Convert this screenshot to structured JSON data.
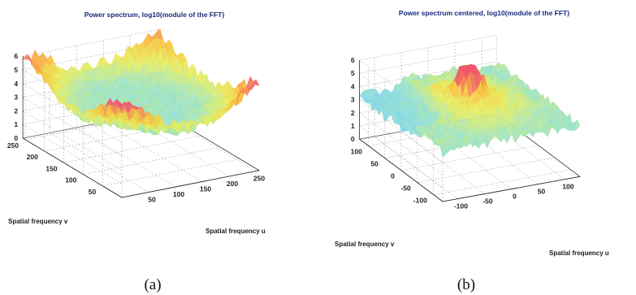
{
  "chart_data": [
    {
      "type": "surface",
      "panel_label": "(a)",
      "title": "Power spectrum, log10(module of the FFT)",
      "xlabel": "Spatial frequency u",
      "ylabel": "Spatial frequency v",
      "zlabel": "",
      "x_ticks": [
        "50",
        "100",
        "150",
        "200",
        "250"
      ],
      "y_ticks": [
        "50",
        "100",
        "150",
        "200",
        "250"
      ],
      "z_ticks": [
        "0",
        "1",
        "2",
        "3",
        "4",
        "5",
        "6"
      ],
      "xlim": [
        0,
        256
      ],
      "ylim": [
        0,
        256
      ],
      "zlim": [
        0,
        6
      ],
      "grid": true,
      "colormap": [
        "#7fd4f0",
        "#9be3c8",
        "#e6ee60",
        "#f8c23a",
        "#f0566e"
      ],
      "peaks": [
        {
          "u": 128,
          "v": 128,
          "z": 3.4
        },
        {
          "u": 0,
          "v": 0,
          "z": 6.0
        },
        {
          "u": 256,
          "v": 0,
          "z": 5.2
        },
        {
          "u": 0,
          "v": 256,
          "z": 5.0
        },
        {
          "u": 256,
          "v": 256,
          "z": 4.6
        }
      ],
      "base_level": 3.2
    },
    {
      "type": "surface",
      "panel_label": "(b)",
      "title": "Power spectrum centered, log10(module of the FFT)",
      "xlabel": "Spatial frequency u",
      "ylabel": "Spatial frequency v",
      "zlabel": "",
      "x_ticks": [
        "-100",
        "-50",
        "0",
        "50",
        "100"
      ],
      "y_ticks": [
        "-100",
        "-50",
        "0",
        "50",
        "100"
      ],
      "z_ticks": [
        "0",
        "1",
        "2",
        "3",
        "4",
        "5",
        "6"
      ],
      "xlim": [
        -128,
        128
      ],
      "ylim": [
        -128,
        128
      ],
      "zlim": [
        0,
        6
      ],
      "grid": true,
      "colormap": [
        "#7fd4f0",
        "#9be3c8",
        "#e6ee60",
        "#f8c23a",
        "#f0566e"
      ],
      "peaks": [
        {
          "u": 0,
          "v": 0,
          "z": 7.0
        }
      ],
      "base_level": 3.8
    }
  ]
}
